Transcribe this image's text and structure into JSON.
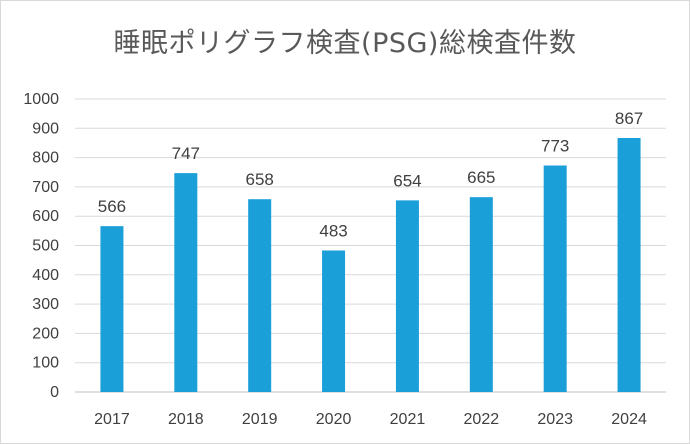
{
  "chart_data": {
    "type": "bar",
    "title": "睡眠ポリグラフ検査(PSG)総検査件数",
    "xlabel": "",
    "ylabel": "",
    "categories": [
      "2017",
      "2018",
      "2019",
      "2020",
      "2021",
      "2022",
      "2023",
      "2024"
    ],
    "values": [
      566,
      747,
      658,
      483,
      654,
      665,
      773,
      867
    ],
    "ylim": [
      0,
      1000
    ],
    "yticks": [
      0,
      100,
      200,
      300,
      400,
      500,
      600,
      700,
      800,
      900,
      1000
    ],
    "grid": true,
    "legend": "none",
    "bar_color": "#1a9fd8",
    "data_labels": true
  }
}
